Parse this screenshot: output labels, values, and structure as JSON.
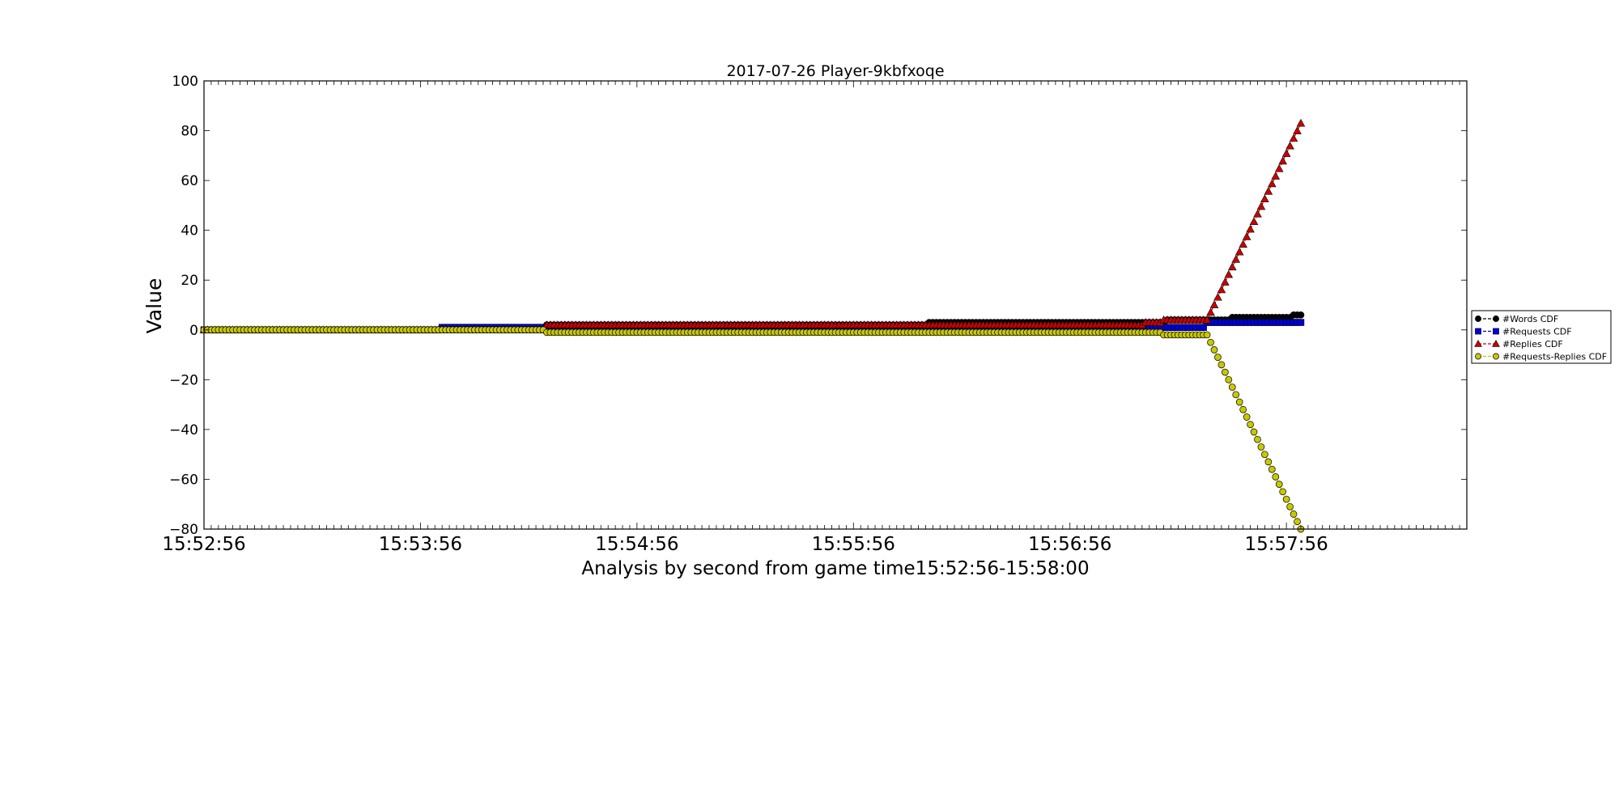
{
  "chart_data": {
    "type": "line",
    "title": "2017-07-26 Player-9kbfxoqe",
    "xlabel": "Analysis by second from game time15:52:56-15:58:00",
    "ylabel": "Value",
    "xlim": [
      0,
      350
    ],
    "ylim": [
      -80,
      100
    ],
    "x_unit": "seconds after 15:52:56",
    "x_ticks": [
      {
        "value": 0,
        "label": "15:52:56"
      },
      {
        "value": 60,
        "label": "15:53:56"
      },
      {
        "value": 120,
        "label": "15:54:56"
      },
      {
        "value": 180,
        "label": "15:55:56"
      },
      {
        "value": 240,
        "label": "15:56:56"
      },
      {
        "value": 300,
        "label": "15:57:56"
      }
    ],
    "y_ticks": [
      100,
      80,
      60,
      40,
      20,
      0,
      -20,
      -40,
      -60,
      -80
    ],
    "y_tick_labels": [
      "100",
      "80",
      "60",
      "40",
      "20",
      "0",
      "−20",
      "−40",
      "−60",
      "−80"
    ],
    "grid": false,
    "legend_position": "outside-right",
    "x_start": 0,
    "x_end": 304,
    "series": [
      {
        "name": "#Words CDF",
        "color": "#000000",
        "marker": "circle",
        "linestyle": "dashed",
        "steps": [
          [
            0,
            0
          ],
          [
            66,
            1
          ],
          [
            95,
            2
          ],
          [
            165,
            2
          ],
          [
            201,
            3
          ],
          [
            267,
            4
          ],
          [
            285,
            5
          ],
          [
            302,
            6
          ]
        ]
      },
      {
        "name": "#Requests CDF",
        "color": "#0000cc",
        "marker": "square",
        "linestyle": "dashed",
        "steps": [
          [
            0,
            0
          ],
          [
            66,
            1
          ],
          [
            95,
            1
          ],
          [
            278,
            3
          ]
        ]
      },
      {
        "name": "#Replies CDF",
        "color": "#cc0000",
        "marker": "triangle",
        "linestyle": "dashed",
        "steps": [
          [
            0,
            0
          ],
          [
            95,
            2
          ],
          [
            165,
            2
          ],
          [
            261,
            3
          ],
          [
            266,
            4
          ],
          [
            278,
            4
          ]
        ],
        "ramp": {
          "from_x": 278,
          "from_y": 4,
          "to_x": 304,
          "to_y": 83
        }
      },
      {
        "name": "#Requests-Replies CDF",
        "color": "#c8c800",
        "marker": "circle",
        "linestyle": "dashed",
        "steps": [
          [
            0,
            0
          ],
          [
            95,
            -1
          ],
          [
            265,
            -1
          ],
          [
            266,
            -2
          ],
          [
            278,
            -2
          ]
        ],
        "ramp": {
          "from_x": 278,
          "from_y": -2,
          "to_x": 304,
          "to_y": -80
        }
      }
    ]
  }
}
